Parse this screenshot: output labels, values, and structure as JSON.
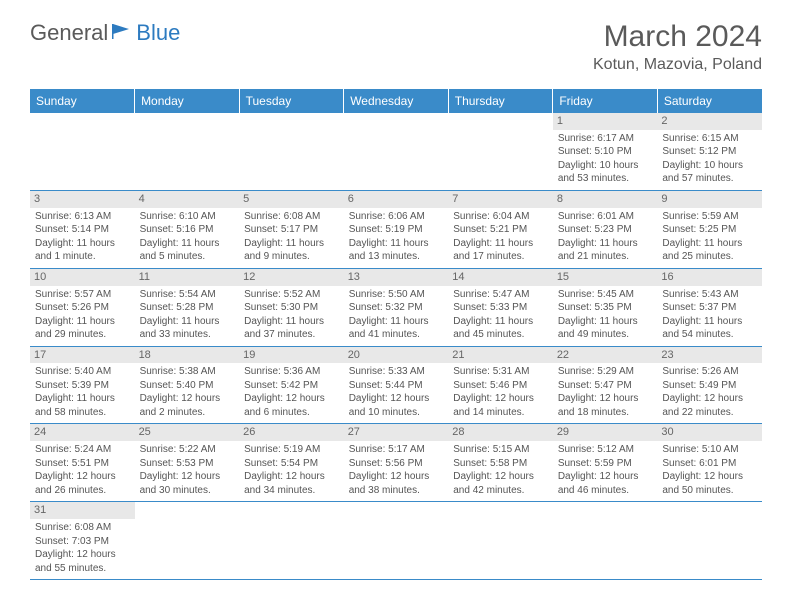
{
  "brand": {
    "part1": "General",
    "part2": "Blue"
  },
  "title": "March 2024",
  "location": "Kotun, Mazovia, Poland",
  "colors": {
    "header_bg": "#3a8bc9",
    "header_text": "#ffffff",
    "daynum_bg": "#e8e8e8",
    "text": "#555555",
    "border": "#3a8bc9"
  },
  "dayHeaders": [
    "Sunday",
    "Monday",
    "Tuesday",
    "Wednesday",
    "Thursday",
    "Friday",
    "Saturday"
  ],
  "weeks": [
    [
      null,
      null,
      null,
      null,
      null,
      {
        "n": "1",
        "sr": "6:17 AM",
        "ss": "5:10 PM",
        "dl": "10 hours and 53 minutes."
      },
      {
        "n": "2",
        "sr": "6:15 AM",
        "ss": "5:12 PM",
        "dl": "10 hours and 57 minutes."
      }
    ],
    [
      {
        "n": "3",
        "sr": "6:13 AM",
        "ss": "5:14 PM",
        "dl": "11 hours and 1 minute."
      },
      {
        "n": "4",
        "sr": "6:10 AM",
        "ss": "5:16 PM",
        "dl": "11 hours and 5 minutes."
      },
      {
        "n": "5",
        "sr": "6:08 AM",
        "ss": "5:17 PM",
        "dl": "11 hours and 9 minutes."
      },
      {
        "n": "6",
        "sr": "6:06 AM",
        "ss": "5:19 PM",
        "dl": "11 hours and 13 minutes."
      },
      {
        "n": "7",
        "sr": "6:04 AM",
        "ss": "5:21 PM",
        "dl": "11 hours and 17 minutes."
      },
      {
        "n": "8",
        "sr": "6:01 AM",
        "ss": "5:23 PM",
        "dl": "11 hours and 21 minutes."
      },
      {
        "n": "9",
        "sr": "5:59 AM",
        "ss": "5:25 PM",
        "dl": "11 hours and 25 minutes."
      }
    ],
    [
      {
        "n": "10",
        "sr": "5:57 AM",
        "ss": "5:26 PM",
        "dl": "11 hours and 29 minutes."
      },
      {
        "n": "11",
        "sr": "5:54 AM",
        "ss": "5:28 PM",
        "dl": "11 hours and 33 minutes."
      },
      {
        "n": "12",
        "sr": "5:52 AM",
        "ss": "5:30 PM",
        "dl": "11 hours and 37 minutes."
      },
      {
        "n": "13",
        "sr": "5:50 AM",
        "ss": "5:32 PM",
        "dl": "11 hours and 41 minutes."
      },
      {
        "n": "14",
        "sr": "5:47 AM",
        "ss": "5:33 PM",
        "dl": "11 hours and 45 minutes."
      },
      {
        "n": "15",
        "sr": "5:45 AM",
        "ss": "5:35 PM",
        "dl": "11 hours and 49 minutes."
      },
      {
        "n": "16",
        "sr": "5:43 AM",
        "ss": "5:37 PM",
        "dl": "11 hours and 54 minutes."
      }
    ],
    [
      {
        "n": "17",
        "sr": "5:40 AM",
        "ss": "5:39 PM",
        "dl": "11 hours and 58 minutes."
      },
      {
        "n": "18",
        "sr": "5:38 AM",
        "ss": "5:40 PM",
        "dl": "12 hours and 2 minutes."
      },
      {
        "n": "19",
        "sr": "5:36 AM",
        "ss": "5:42 PM",
        "dl": "12 hours and 6 minutes."
      },
      {
        "n": "20",
        "sr": "5:33 AM",
        "ss": "5:44 PM",
        "dl": "12 hours and 10 minutes."
      },
      {
        "n": "21",
        "sr": "5:31 AM",
        "ss": "5:46 PM",
        "dl": "12 hours and 14 minutes."
      },
      {
        "n": "22",
        "sr": "5:29 AM",
        "ss": "5:47 PM",
        "dl": "12 hours and 18 minutes."
      },
      {
        "n": "23",
        "sr": "5:26 AM",
        "ss": "5:49 PM",
        "dl": "12 hours and 22 minutes."
      }
    ],
    [
      {
        "n": "24",
        "sr": "5:24 AM",
        "ss": "5:51 PM",
        "dl": "12 hours and 26 minutes."
      },
      {
        "n": "25",
        "sr": "5:22 AM",
        "ss": "5:53 PM",
        "dl": "12 hours and 30 minutes."
      },
      {
        "n": "26",
        "sr": "5:19 AM",
        "ss": "5:54 PM",
        "dl": "12 hours and 34 minutes."
      },
      {
        "n": "27",
        "sr": "5:17 AM",
        "ss": "5:56 PM",
        "dl": "12 hours and 38 minutes."
      },
      {
        "n": "28",
        "sr": "5:15 AM",
        "ss": "5:58 PM",
        "dl": "12 hours and 42 minutes."
      },
      {
        "n": "29",
        "sr": "5:12 AM",
        "ss": "5:59 PM",
        "dl": "12 hours and 46 minutes."
      },
      {
        "n": "30",
        "sr": "5:10 AM",
        "ss": "6:01 PM",
        "dl": "12 hours and 50 minutes."
      }
    ],
    [
      {
        "n": "31",
        "sr": "6:08 AM",
        "ss": "7:03 PM",
        "dl": "12 hours and 55 minutes."
      },
      null,
      null,
      null,
      null,
      null,
      null
    ]
  ],
  "labels": {
    "sunrise": "Sunrise: ",
    "sunset": "Sunset: ",
    "daylight": "Daylight: "
  }
}
